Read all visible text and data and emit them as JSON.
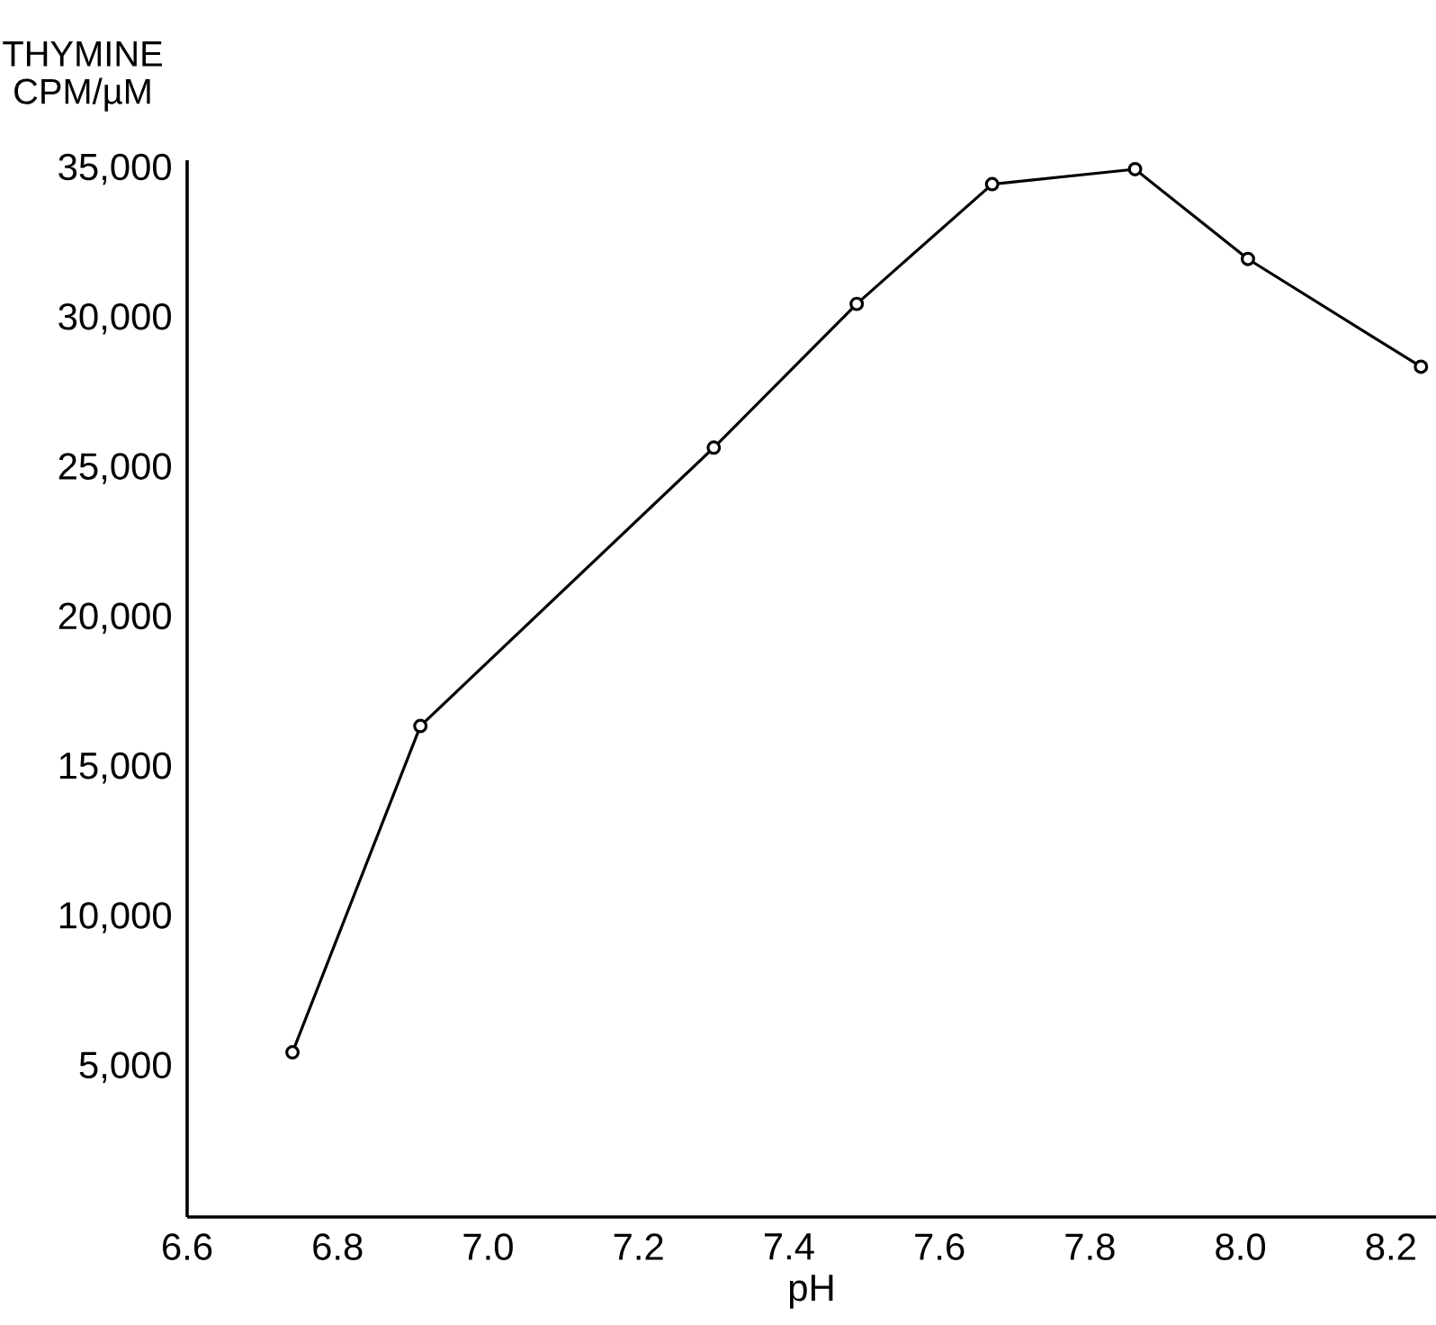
{
  "chart_data": {
    "type": "line",
    "xlabel": "pH",
    "ylabel": "THYMINE CPM/µM",
    "x": [
      6.74,
      6.91,
      7.3,
      7.49,
      7.67,
      7.86,
      8.01,
      8.24
    ],
    "series": [
      {
        "color": "#000000",
        "values": [
          5500,
          16400,
          25700,
          30500,
          34500,
          35000,
          32000,
          28400
        ]
      }
    ],
    "xlim": [
      6.6,
      8.26
    ],
    "xticks": [
      6.6,
      6.8,
      {
        "value": 7,
        "label": "7.0"
      },
      7.2,
      7.4,
      7.6,
      7.8,
      {
        "value": 8,
        "label": "8.0"
      },
      8.2
    ],
    "ylim": [
      0,
      35300
    ],
    "yticks": [
      {
        "value": 5000,
        "label": "5,000"
      },
      {
        "value": 10000,
        "label": "10,000"
      },
      {
        "value": 15000,
        "label": "15,000"
      },
      {
        "value": 20000,
        "label": "20,000"
      },
      {
        "value": 25000,
        "label": "25,000"
      },
      {
        "value": 30000,
        "label": "30,000"
      },
      {
        "value": 35000,
        "label": "35,000"
      }
    ],
    "marker": "circle",
    "line_style": "solid"
  }
}
